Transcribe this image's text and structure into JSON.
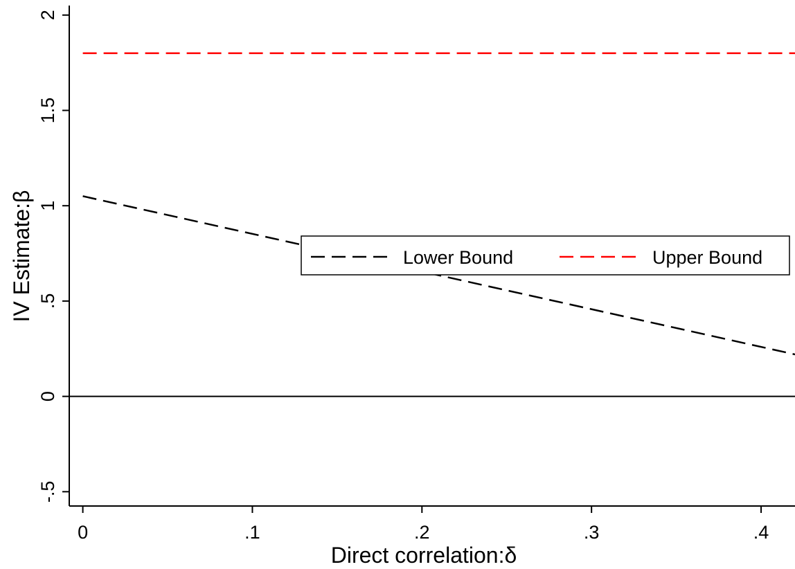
{
  "chart_data": {
    "type": "line",
    "title": "",
    "xlabel": "Direct correlation:δ",
    "ylabel": "IV Estimate:β",
    "xlim": [
      -0.008,
      0.42
    ],
    "ylim": [
      -0.575,
      2.05
    ],
    "x_ticks": [
      {
        "value": 0,
        "label": "0"
      },
      {
        "value": 0.1,
        "label": ".1"
      },
      {
        "value": 0.2,
        "label": ".2"
      },
      {
        "value": 0.3,
        "label": ".3"
      },
      {
        "value": 0.4,
        "label": ".4"
      }
    ],
    "y_ticks": [
      {
        "value": -0.5,
        "label": "-.5"
      },
      {
        "value": 0,
        "label": "0"
      },
      {
        "value": 0.5,
        "label": ".5"
      },
      {
        "value": 1,
        "label": "1"
      },
      {
        "value": 1.5,
        "label": "1.5"
      },
      {
        "value": 2,
        "label": "2"
      }
    ],
    "reference_line_y": 0,
    "grid": false,
    "legend_position": "center-right",
    "series": [
      {
        "name": "Lower Bound",
        "color": "#000000",
        "style": "dashed",
        "x": [
          0,
          0.42
        ],
        "y": [
          1.05,
          0.22
        ]
      },
      {
        "name": "Upper Bound",
        "color": "#ff0000",
        "style": "dashed",
        "x": [
          0,
          0.42
        ],
        "y": [
          1.8,
          1.8
        ]
      }
    ]
  }
}
